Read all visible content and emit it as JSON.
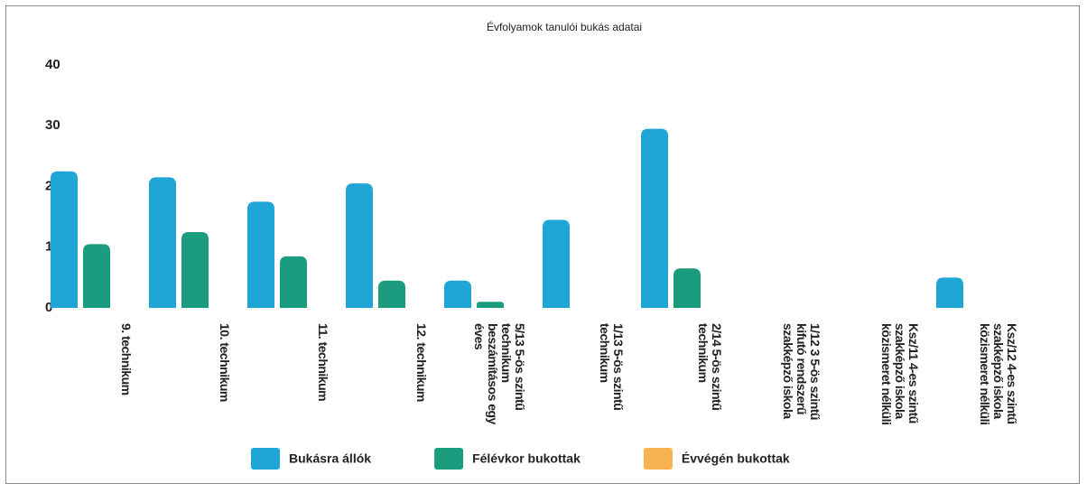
{
  "chart_data": {
    "type": "bar",
    "title": "Évfolyamok tanulói bukás adatai",
    "categories": [
      "9. technikum",
      "10. technikum",
      "11. technikum",
      "12. technikum",
      "5/13 5-ös szintű technikum beszámításos egy éves",
      "1/13 5-ös szintű technikum",
      "2/14 5-ös szintű technikum",
      "1/12 3 5-ös szintű kifutó rendszerű szakképző iskola",
      "Ksz/11 4-es szintű szakképző iskola közismeret nélküli",
      "Ksz/12 4-es szintű szakképző iskola közismeret nélküli"
    ],
    "series": [
      {
        "name": "Bukásra állók",
        "color": "#1fa6d6",
        "values": [
          22.5,
          21.5,
          17.5,
          20.5,
          4.5,
          14.5,
          29.5,
          0,
          0,
          5
        ]
      },
      {
        "name": "Félévkor bukottak",
        "color": "#1b9c7f",
        "values": [
          10.5,
          12.5,
          8.5,
          4.5,
          1,
          0,
          6.5,
          0,
          0,
          0
        ]
      },
      {
        "name": "Évvégén bukottak",
        "color": "#f7b34f",
        "values": [
          0,
          0,
          0,
          0,
          0,
          0,
          0,
          0,
          0,
          0
        ]
      }
    ],
    "ylim": [
      0,
      40
    ],
    "yticks": [
      0,
      10,
      20,
      30,
      40
    ],
    "legend": "bottom"
  }
}
